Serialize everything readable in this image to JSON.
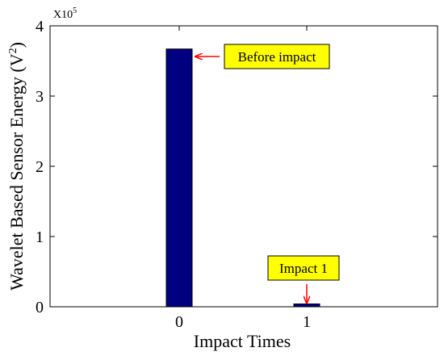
{
  "chart_data": {
    "type": "bar",
    "categories": [
      "0",
      "1"
    ],
    "values": [
      367000,
      4000
    ],
    "bar_color": "#000080",
    "xlabel": "Impact Times",
    "ylabel_main": "Wavelet Based Sensor Energy (V",
    "ylabel_sup": "2",
    "ylabel_end": ")",
    "ylim": [
      0,
      400000
    ],
    "yticks": [
      0,
      1,
      2,
      3,
      4
    ],
    "y_multiplier_base": "X10",
    "y_multiplier_exp": "5",
    "annotations": [
      {
        "text": "Before impact",
        "target_category": "0",
        "box_color": "#ffff00",
        "arrow_color": "#ff0000"
      },
      {
        "text": "Impact 1",
        "target_category": "1",
        "box_color": "#ffff00",
        "arrow_color": "#ff0000"
      }
    ]
  }
}
